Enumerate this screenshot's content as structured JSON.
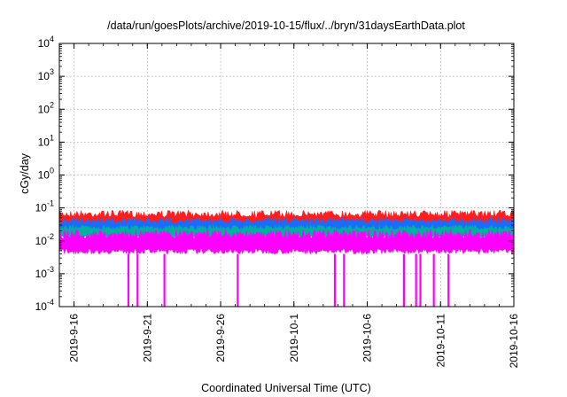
{
  "chart_data": {
    "type": "line",
    "title": "/data/run/goesPlots/archive/2019-10-15/flux/../bryn/31daysEarthData.plot",
    "xlabel": "Coordinated Universal Time (UTC)",
    "ylabel": "cGy/day",
    "yscale": "log",
    "ylim": [
      0.0001,
      10000
    ],
    "xlim": [
      "2019-09-15",
      "2019-10-16"
    ],
    "x_ticks": [
      "2019-9-16",
      "2019-9-21",
      "2019-9-26",
      "2019-10-1",
      "2019-10-6",
      "2019-10-11",
      "2019-10-16"
    ],
    "y_ticks": [
      {
        "base": "10",
        "exp": "-4"
      },
      {
        "base": "10",
        "exp": "-3"
      },
      {
        "base": "10",
        "exp": "-2"
      },
      {
        "base": "10",
        "exp": "-1"
      },
      {
        "base": "10",
        "exp": "0"
      },
      {
        "base": "10",
        "exp": "1"
      },
      {
        "base": "10",
        "exp": "2"
      },
      {
        "base": "10",
        "exp": "3"
      },
      {
        "base": "10",
        "exp": "4"
      }
    ],
    "grid": true,
    "series": [
      {
        "color": "#ff1e1e",
        "typical_min": 0.022,
        "typical_max": 0.085
      },
      {
        "color": "#1a6bff",
        "typical_min": 0.016,
        "typical_max": 0.05
      },
      {
        "color": "#00b0a0",
        "typical_min": 0.012,
        "typical_max": 0.03
      },
      {
        "color": "#ff00ff",
        "typical_min": 0.004,
        "typical_max": 0.022,
        "dropouts": [
          "2019-09-19T17:00",
          "2019-09-20T08:00",
          "2019-09-22T04:00",
          "2019-09-27T04:00",
          "2019-10-03T19:00",
          "2019-10-04T10:00",
          "2019-10-08T12:00",
          "2019-10-09T08:00",
          "2019-10-09T15:00",
          "2019-10-10T13:00",
          "2019-10-11T13:00"
        ]
      }
    ]
  }
}
